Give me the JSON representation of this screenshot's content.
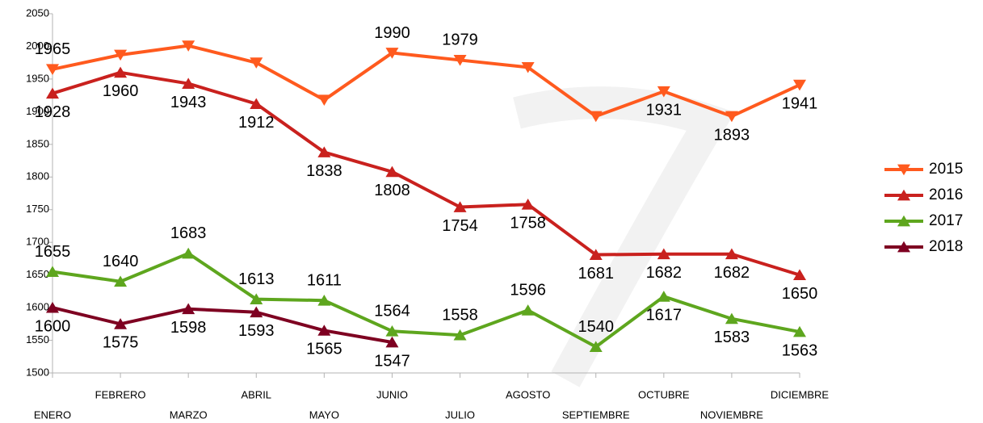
{
  "chart_data": {
    "type": "line",
    "categories": [
      "ENERO",
      "FEBRERO",
      "MARZO",
      "ABRIL",
      "MAYO",
      "JUNIO",
      "JULIO",
      "AGOSTO",
      "SEPTIEMBRE",
      "OCTUBRE",
      "NOVIEMBRE",
      "DICIEMBRE"
    ],
    "series": [
      {
        "name": "2015",
        "color": "#ff5a1e",
        "marker": "triangle-down",
        "values": [
          1965,
          1987,
          2001,
          1975,
          1918,
          1990,
          1979,
          1968,
          1893,
          1931,
          1893,
          1941
        ],
        "value_labels": [
          "1965",
          null,
          null,
          null,
          null,
          "1990",
          "1979",
          null,
          null,
          "1931",
          "1893",
          "1941"
        ]
      },
      {
        "name": "2016",
        "color": "#c9211e",
        "marker": "triangle-up",
        "values": [
          1928,
          1960,
          1943,
          1912,
          1838,
          1808,
          1754,
          1758,
          1681,
          1682,
          1682,
          1650
        ]
      },
      {
        "name": "2017",
        "color": "#5ea61e",
        "marker": "triangle-up",
        "values": [
          1655,
          1640,
          1683,
          1613,
          1611,
          1564,
          1558,
          1596,
          1540,
          1617,
          1583,
          1563
        ]
      },
      {
        "name": "2018",
        "color": "#7e0021",
        "marker": "triangle-up",
        "values": [
          1600,
          1575,
          1598,
          1593,
          1565,
          1547,
          null,
          null,
          null,
          null,
          null,
          null
        ]
      }
    ],
    "ylim": [
      1500,
      2050
    ],
    "yticks": [
      1500,
      1550,
      1600,
      1650,
      1700,
      1750,
      1800,
      1850,
      1900,
      1950,
      2000,
      2050
    ],
    "grid": false,
    "legend": "right"
  }
}
